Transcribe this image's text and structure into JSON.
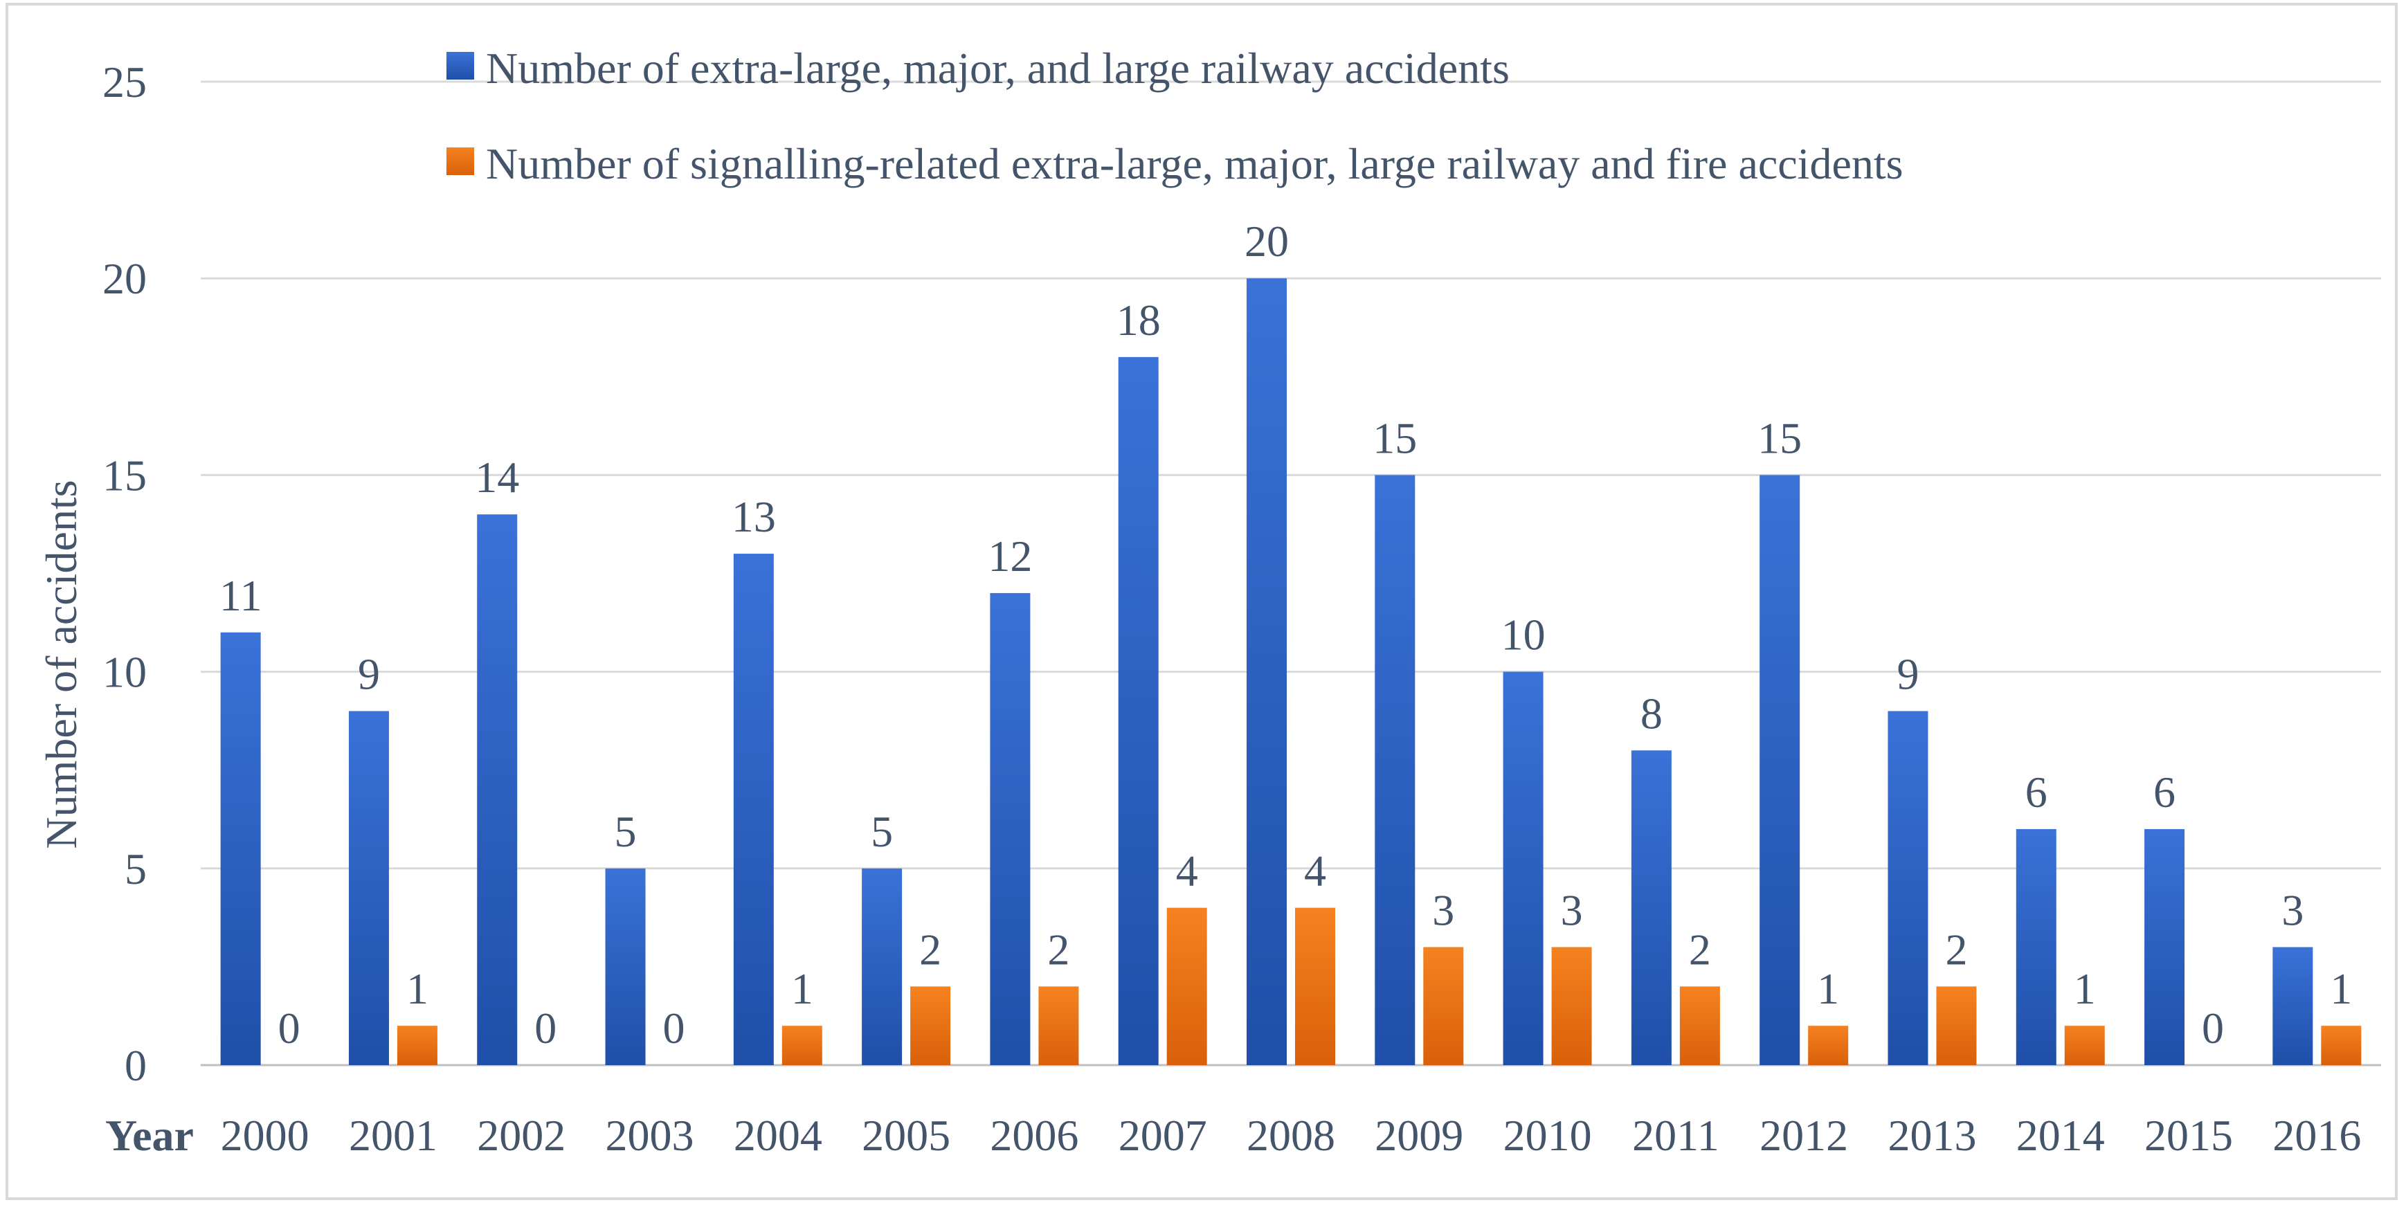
{
  "chart_data": {
    "type": "bar",
    "categories": [
      "2000",
      "2001",
      "2002",
      "2003",
      "2004",
      "2005",
      "2006",
      "2007",
      "2008",
      "2009",
      "2010",
      "2011",
      "2012",
      "2013",
      "2014",
      "2015",
      "2016"
    ],
    "series": [
      {
        "name": "Number of extra-large, major, and large railway accidents",
        "values": [
          11,
          9,
          14,
          5,
          13,
          5,
          12,
          18,
          20,
          15,
          10,
          8,
          15,
          9,
          6,
          6,
          3
        ],
        "color": "#2e66cc"
      },
      {
        "name": "Number of signalling-related extra-large, major, large railway and fire accidents",
        "values": [
          0,
          1,
          0,
          0,
          1,
          2,
          2,
          4,
          4,
          3,
          3,
          2,
          1,
          2,
          1,
          0,
          1
        ],
        "color": "#f07a10"
      }
    ],
    "title": "",
    "xlabel": "Year",
    "ylabel": "Number of accidents",
    "ylim": [
      0,
      25
    ],
    "yticks": [
      0,
      5,
      10,
      15,
      20,
      25
    ],
    "grid": true,
    "legend": "top"
  }
}
